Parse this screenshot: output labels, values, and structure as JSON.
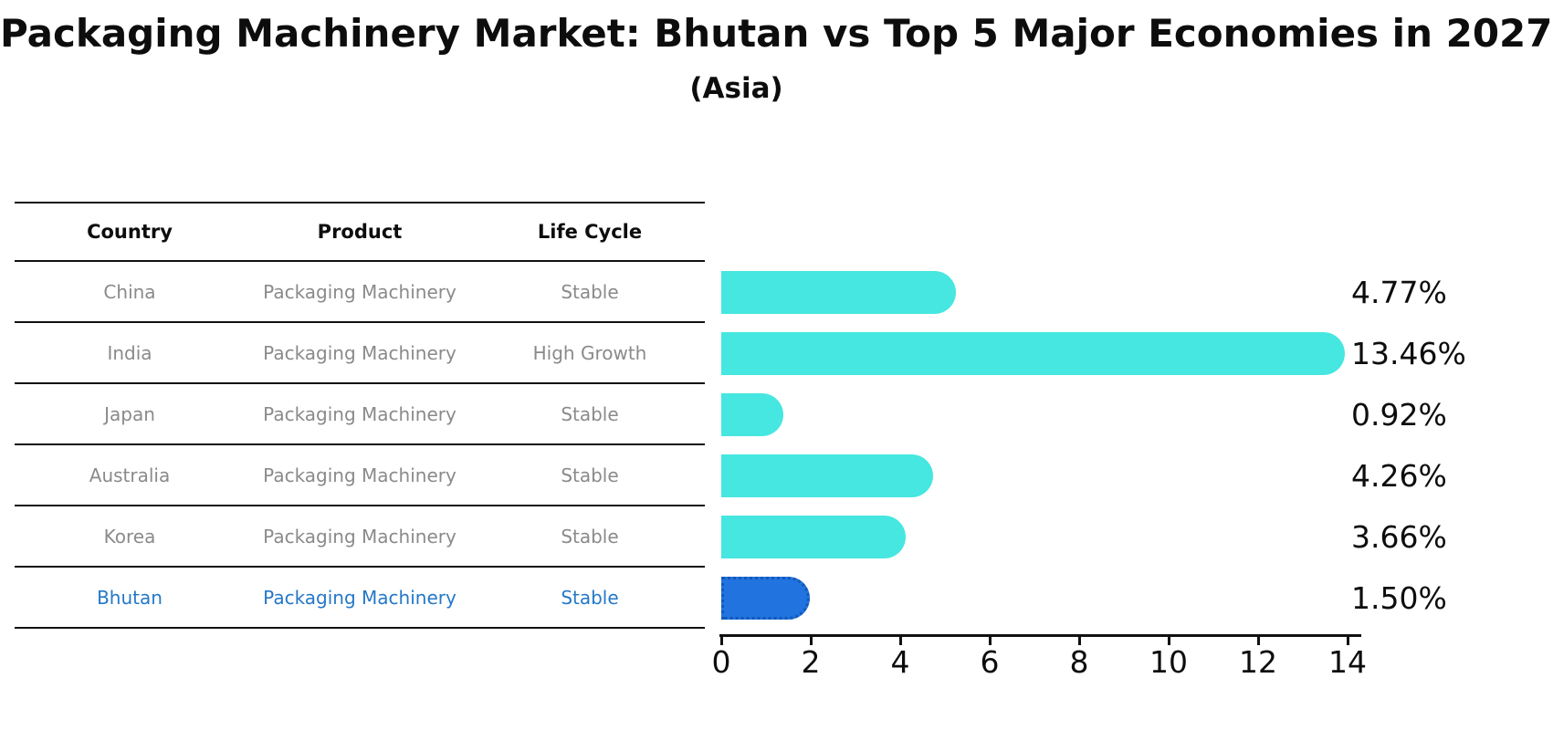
{
  "title": "Packaging Machinery Market: Bhutan vs Top 5 Major Economies in 2027",
  "subtitle": "(Asia)",
  "table": {
    "headers": [
      "Country",
      "Product",
      "Life Cycle"
    ],
    "rows": [
      {
        "country": "China",
        "product": "Packaging Machinery",
        "life_cycle": "Stable",
        "highlight": false
      },
      {
        "country": "India",
        "product": "Packaging Machinery",
        "life_cycle": "High Growth",
        "highlight": false
      },
      {
        "country": "Japan",
        "product": "Packaging Machinery",
        "life_cycle": "Stable",
        "highlight": false
      },
      {
        "country": "Australia",
        "product": "Packaging Machinery",
        "life_cycle": "Stable",
        "highlight": false
      },
      {
        "country": "Korea",
        "product": "Packaging Machinery",
        "life_cycle": "Stable",
        "highlight": false
      },
      {
        "country": "Bhutan",
        "product": "Packaging Machinery",
        "life_cycle": "Stable",
        "highlight": true
      }
    ]
  },
  "chart_data": {
    "type": "bar",
    "orientation": "horizontal",
    "title": "Packaging Machinery Market: Bhutan vs Top 5 Major Economies in 2027",
    "subtitle": "(Asia)",
    "categories": [
      "China",
      "India",
      "Japan",
      "Australia",
      "Korea",
      "Bhutan"
    ],
    "values": [
      4.77,
      13.46,
      0.92,
      4.26,
      3.66,
      1.5
    ],
    "value_labels": [
      "4.77%",
      "13.46%",
      "0.92%",
      "4.26%",
      "3.66%",
      "1.50%"
    ],
    "xlim": [
      0,
      14.3
    ],
    "xticks": [
      0,
      2,
      4,
      6,
      8,
      10,
      12,
      14
    ],
    "xlabel": "",
    "ylabel": "",
    "grid": false,
    "legend_position": "none",
    "highlight_index": 5,
    "highlight_style": "dotted-outline"
  },
  "colors": {
    "bar_default": "#45e7e0",
    "bar_highlight": "#2173df",
    "highlight_border": "#1158b8",
    "table_text": "#8a8a8a",
    "highlight_text": "#2478c8",
    "axis": "#111111",
    "background": "#ffffff"
  }
}
